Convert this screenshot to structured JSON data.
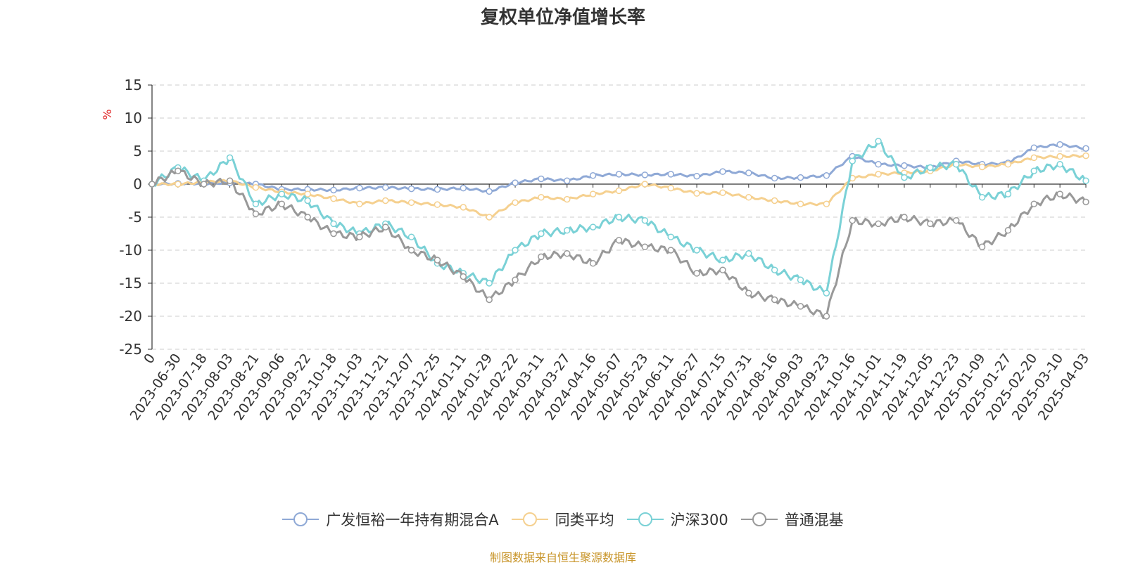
{
  "chart_data": {
    "type": "line",
    "title": "复权单位净值增长率",
    "ylabel": "%",
    "ylim": [
      -25,
      15
    ],
    "yticks": [
      15,
      10,
      5,
      0,
      -5,
      -10,
      -15,
      -20,
      -25
    ],
    "grid": true,
    "legend_position": "bottom",
    "x_tick_labels": [
      "0",
      "2023-06-30",
      "2023-07-18",
      "2023-08-03",
      "2023-08-21",
      "2023-09-06",
      "2023-09-22",
      "2023-10-18",
      "2023-11-03",
      "2023-11-21",
      "2023-12-07",
      "2023-12-25",
      "2024-01-11",
      "2024-01-29",
      "2024-02-22",
      "2024-03-11",
      "2024-03-27",
      "2024-04-16",
      "2024-05-07",
      "2024-05-23",
      "2024-06-11",
      "2024-06-27",
      "2024-07-15",
      "2024-07-31",
      "2024-08-16",
      "2024-09-03",
      "2024-09-23",
      "2024-10-16",
      "2024-11-01",
      "2024-11-19",
      "2024-12-05",
      "2024-12-23",
      "2025-01-09",
      "2025-01-27",
      "2025-02-20",
      "2025-03-10",
      "2025-04-03"
    ],
    "series": [
      {
        "name": "广发恒裕一年持有期混合A",
        "color": "#8fa9d6",
        "values": [
          0,
          0.1,
          0.1,
          0.2,
          0,
          -0.8,
          -0.8,
          -0.9,
          -0.6,
          -0.5,
          -0.7,
          -0.8,
          -0.6,
          -1.1,
          0.2,
          0.8,
          0.5,
          1.3,
          1.5,
          1.4,
          1.5,
          1.2,
          1.9,
          1.7,
          0.9,
          1.0,
          1.3,
          4.2,
          3.0,
          2.8,
          2.5,
          3.5,
          3.0,
          3.2,
          5.5,
          6.0,
          5.4
        ]
      },
      {
        "name": "同类平均",
        "color": "#f5d08f",
        "values": [
          0,
          0,
          0.3,
          0.5,
          -0.5,
          -1.2,
          -1.5,
          -2.2,
          -3.0,
          -2.5,
          -2.8,
          -3.1,
          -3.5,
          -5.0,
          -2.8,
          -2.0,
          -2.3,
          -1.5,
          -1.0,
          0,
          -0.6,
          -1.4,
          -1.3,
          -2.0,
          -2.5,
          -3.0,
          -3.0,
          0.9,
          1.5,
          1.7,
          2.0,
          3.0,
          2.6,
          3.0,
          4.0,
          4.2,
          4.3
        ]
      },
      {
        "name": "沪深300",
        "color": "#7ad1d6",
        "values": [
          0,
          2.5,
          0.5,
          4.0,
          -3.0,
          -1.5,
          -2.5,
          -6.0,
          -7.5,
          -6.0,
          -8.0,
          -12.0,
          -13.5,
          -15.0,
          -10.0,
          -7.5,
          -7.0,
          -6.5,
          -5.0,
          -5.5,
          -8.0,
          -10.0,
          -11.5,
          -10.5,
          -13.0,
          -14.5,
          -16.5,
          3.5,
          6.5,
          1.0,
          2.5,
          3.0,
          -2.0,
          -1.5,
          2.0,
          3.0,
          0.5
        ]
      },
      {
        "name": "普通混基",
        "color": "#999999",
        "values": [
          0,
          2.0,
          0,
          0.5,
          -4.5,
          -3.0,
          -5.0,
          -7.5,
          -8.0,
          -6.5,
          -10.0,
          -11.5,
          -14.0,
          -17.5,
          -14.5,
          -11.0,
          -10.5,
          -12.0,
          -8.5,
          -9.5,
          -10.0,
          -13.5,
          -13.0,
          -16.5,
          -17.5,
          -18.5,
          -20.0,
          -5.5,
          -6.0,
          -5.0,
          -6.0,
          -5.5,
          -9.5,
          -7.0,
          -3.0,
          -1.5,
          -2.7
        ]
      }
    ]
  },
  "source_note": "制图数据来自恒生聚源数据库"
}
